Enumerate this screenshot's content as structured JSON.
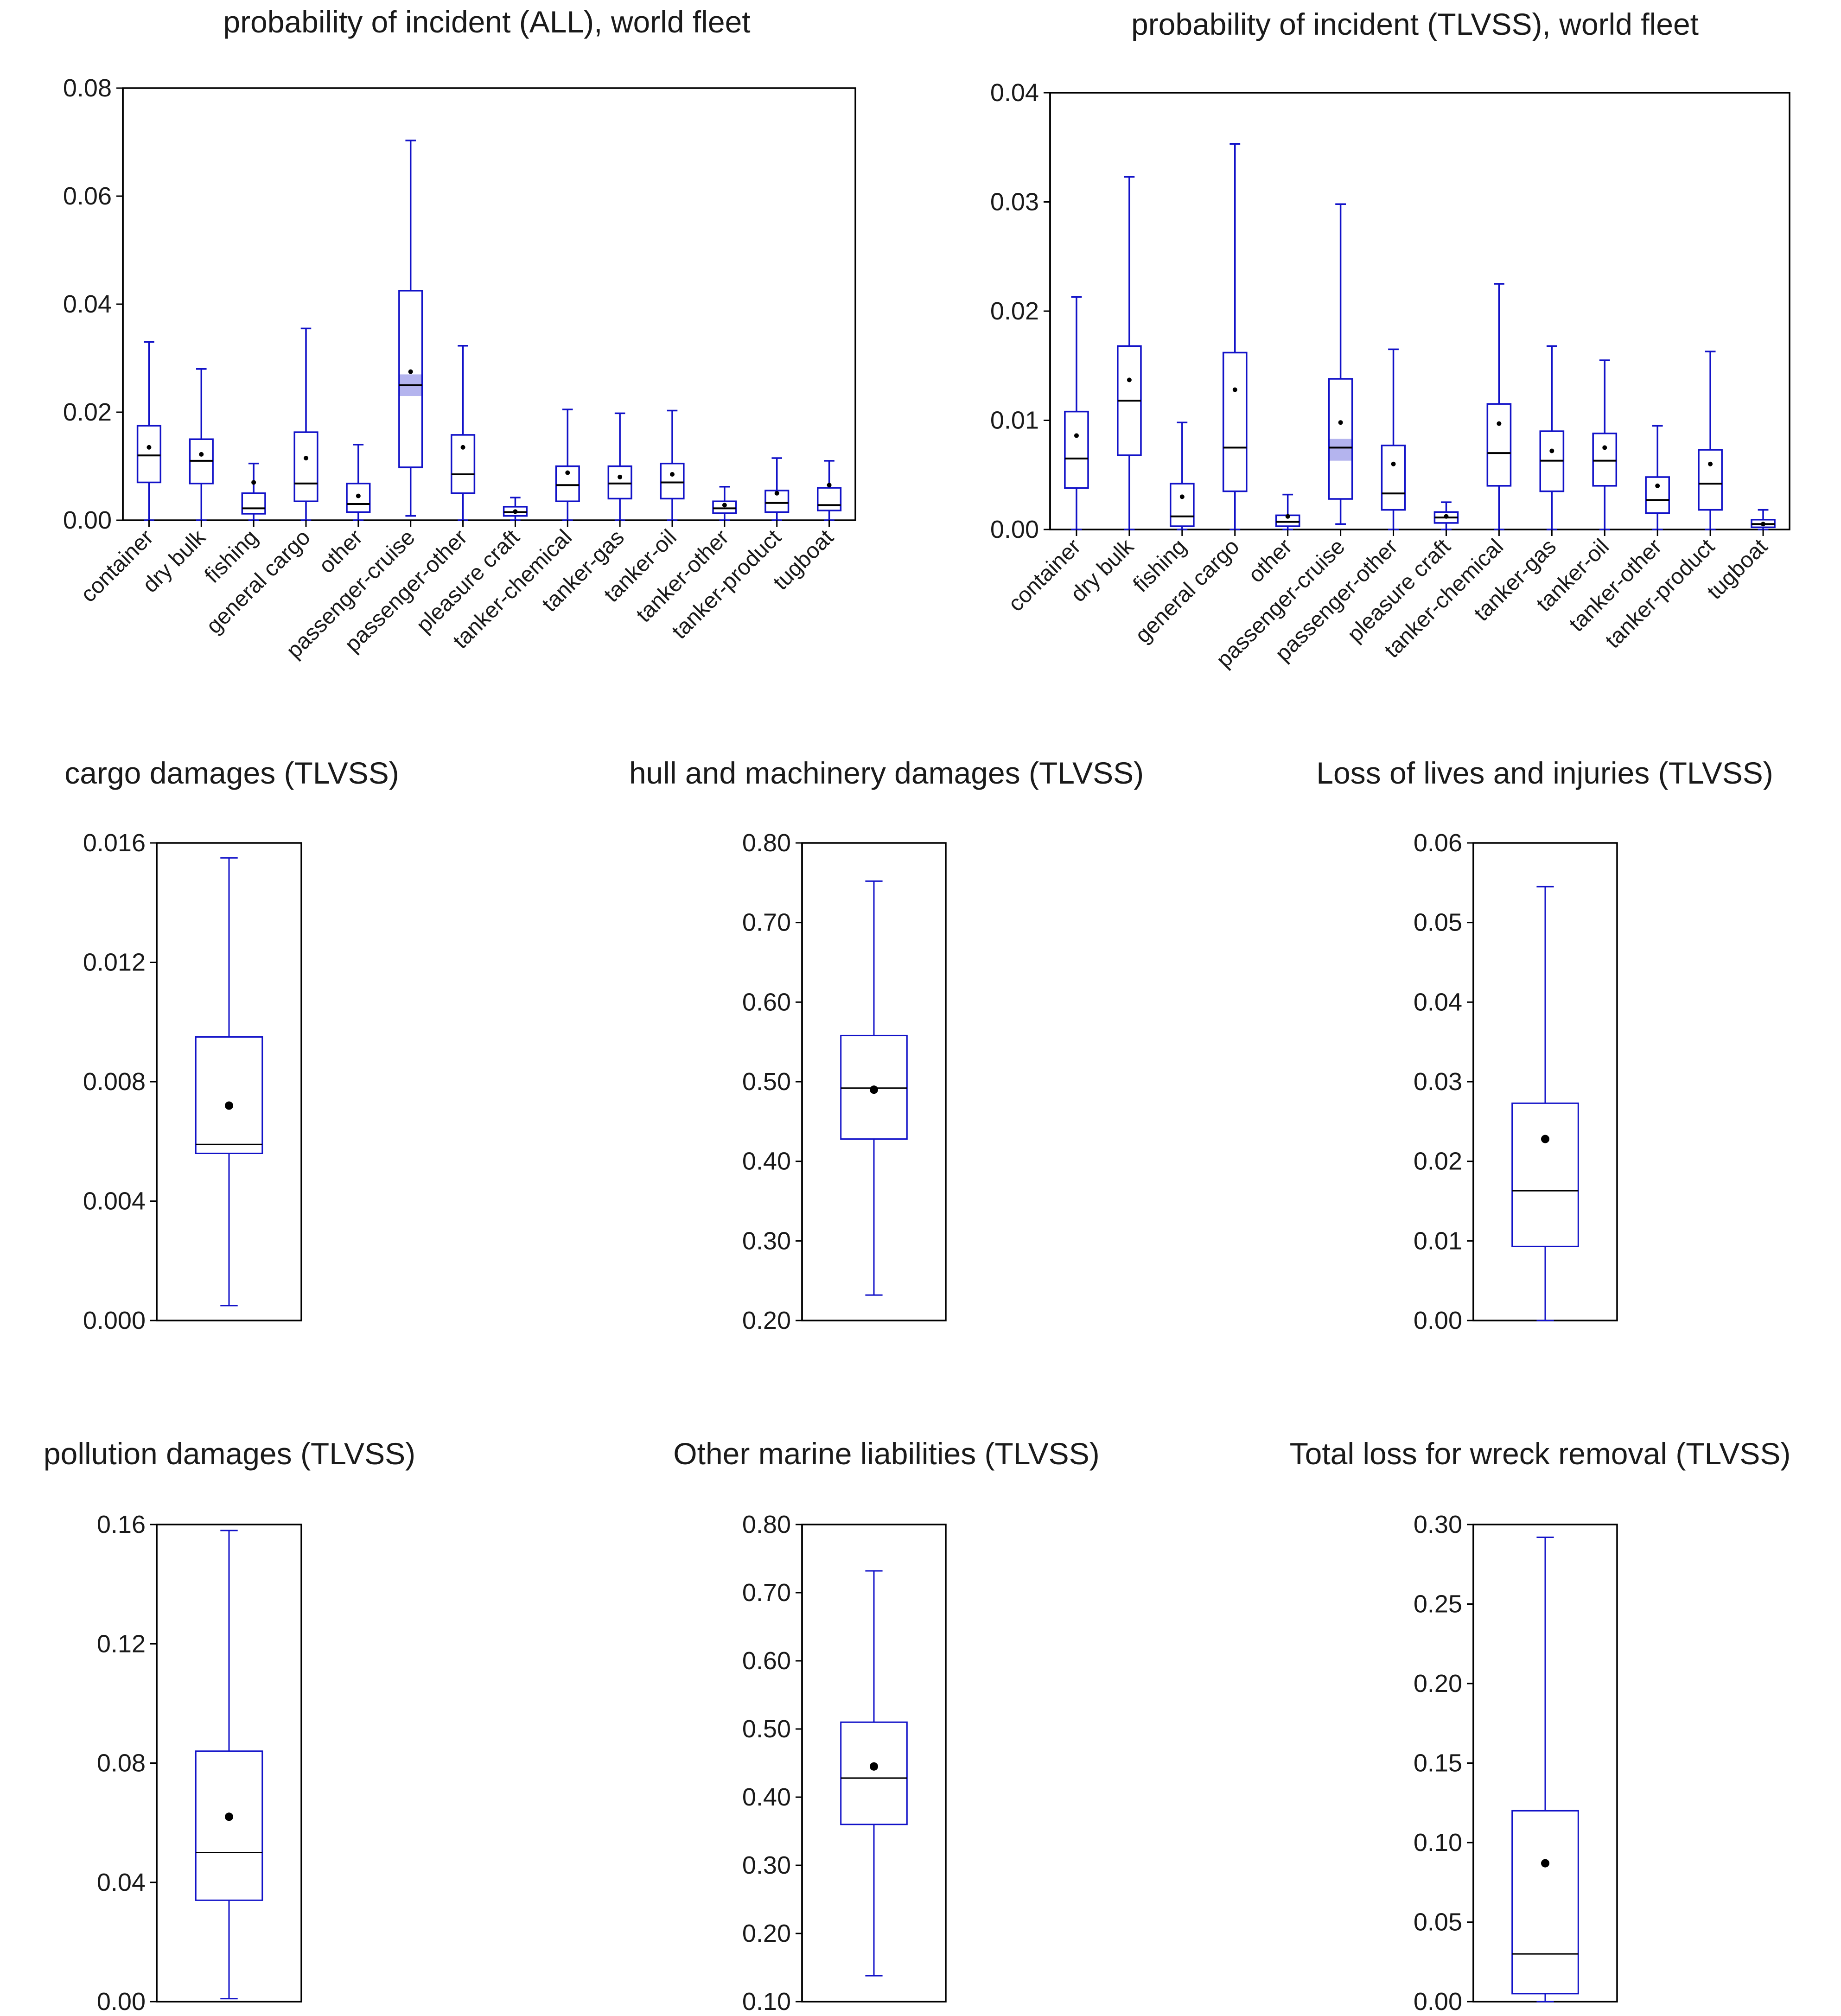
{
  "colors": {
    "box": "#1212c8",
    "median": "#000000",
    "mean": "#000000",
    "notch": "#b4b4ee",
    "axis": "#000000"
  },
  "chart_data": [
    {
      "type": "boxplot",
      "title": "probability of incident (ALL), world fleet",
      "ylim": [
        0,
        0.08
      ],
      "yticks": [
        "0.00",
        "0.02",
        "0.04",
        "0.06",
        "0.08"
      ],
      "categories": [
        "container",
        "dry bulk",
        "fishing",
        "general cargo",
        "other",
        "passenger-cruise",
        "passenger-other",
        "pleasure craft",
        "tanker-chemical",
        "tanker-gas",
        "tanker-oil",
        "tanker-other",
        "tanker-product",
        "tugboat"
      ],
      "series": [
        {
          "name": "container",
          "min": 0.0,
          "q1": 0.007,
          "median": 0.012,
          "q3": 0.0175,
          "max": 0.033,
          "mean": 0.0135
        },
        {
          "name": "dry bulk",
          "min": 0.0,
          "q1": 0.0068,
          "median": 0.011,
          "q3": 0.015,
          "max": 0.028,
          "mean": 0.0122
        },
        {
          "name": "fishing",
          "min": 0.0,
          "q1": 0.0012,
          "median": 0.0022,
          "q3": 0.005,
          "max": 0.0105,
          "mean": 0.007
        },
        {
          "name": "general cargo",
          "min": 0.0,
          "q1": 0.0035,
          "median": 0.0068,
          "q3": 0.0163,
          "max": 0.0355,
          "mean": 0.0115
        },
        {
          "name": "other",
          "min": 0.0,
          "q1": 0.0015,
          "median": 0.003,
          "q3": 0.0068,
          "max": 0.014,
          "mean": 0.0045
        },
        {
          "name": "passenger-cruise",
          "min": 0.0008,
          "q1": 0.0098,
          "median": 0.025,
          "q3": 0.0425,
          "max": 0.0703,
          "mean": 0.0275,
          "notch": [
            0.023,
            0.027
          ]
        },
        {
          "name": "passenger-other",
          "min": 0.0,
          "q1": 0.005,
          "median": 0.0085,
          "q3": 0.0158,
          "max": 0.0323,
          "mean": 0.0135
        },
        {
          "name": "pleasure craft",
          "min": 0.0,
          "q1": 0.0008,
          "median": 0.0015,
          "q3": 0.0025,
          "max": 0.0042,
          "mean": 0.0016
        },
        {
          "name": "tanker-chemical",
          "min": 0.0,
          "q1": 0.0035,
          "median": 0.0065,
          "q3": 0.01,
          "max": 0.0205,
          "mean": 0.0088
        },
        {
          "name": "tanker-gas",
          "min": 0.0,
          "q1": 0.004,
          "median": 0.0068,
          "q3": 0.01,
          "max": 0.0198,
          "mean": 0.008
        },
        {
          "name": "tanker-oil",
          "min": 0.0,
          "q1": 0.004,
          "median": 0.007,
          "q3": 0.0105,
          "max": 0.0203,
          "mean": 0.0085
        },
        {
          "name": "tanker-other",
          "min": 0.0,
          "q1": 0.0013,
          "median": 0.0022,
          "q3": 0.0035,
          "max": 0.0062,
          "mean": 0.0028
        },
        {
          "name": "tanker-product",
          "min": 0.0,
          "q1": 0.0015,
          "median": 0.0032,
          "q3": 0.0055,
          "max": 0.0115,
          "mean": 0.005
        },
        {
          "name": "tugboat",
          "min": 0.0,
          "q1": 0.0018,
          "median": 0.0028,
          "q3": 0.006,
          "max": 0.011,
          "mean": 0.0065
        }
      ]
    },
    {
      "type": "boxplot",
      "title": "probability of incident (TLVSS), world fleet",
      "ylim": [
        0,
        0.04
      ],
      "yticks": [
        "0.00",
        "0.01",
        "0.02",
        "0.03",
        "0.04"
      ],
      "categories": [
        "container",
        "dry bulk",
        "fishing",
        "general cargo",
        "other",
        "passenger-cruise",
        "passenger-other",
        "pleasure craft",
        "tanker-chemical",
        "tanker-gas",
        "tanker-oil",
        "tanker-other",
        "tanker-product",
        "tugboat"
      ],
      "series": [
        {
          "name": "container",
          "min": 0.0,
          "q1": 0.0038,
          "median": 0.0065,
          "q3": 0.0108,
          "max": 0.0213,
          "mean": 0.0086
        },
        {
          "name": "dry bulk",
          "min": 0.0,
          "q1": 0.0068,
          "median": 0.0118,
          "q3": 0.0168,
          "max": 0.0323,
          "mean": 0.0137
        },
        {
          "name": "fishing",
          "min": 0.0,
          "q1": 0.0003,
          "median": 0.0012,
          "q3": 0.0042,
          "max": 0.0098,
          "mean": 0.003
        },
        {
          "name": "general cargo",
          "min": 0.0,
          "q1": 0.0035,
          "median": 0.0075,
          "q3": 0.0162,
          "max": 0.0353,
          "mean": 0.0128
        },
        {
          "name": "other",
          "min": 0.0,
          "q1": 0.0003,
          "median": 0.0007,
          "q3": 0.0013,
          "max": 0.0032,
          "mean": 0.0012
        },
        {
          "name": "passenger-cruise",
          "min": 0.0005,
          "q1": 0.0028,
          "median": 0.0075,
          "q3": 0.0138,
          "max": 0.0298,
          "mean": 0.0098,
          "notch": [
            0.0063,
            0.0083
          ]
        },
        {
          "name": "passenger-other",
          "min": 0.0,
          "q1": 0.0018,
          "median": 0.0033,
          "q3": 0.0077,
          "max": 0.0165,
          "mean": 0.006
        },
        {
          "name": "pleasure craft",
          "min": 0.0,
          "q1": 0.0006,
          "median": 0.0011,
          "q3": 0.0016,
          "max": 0.0025,
          "mean": 0.0012
        },
        {
          "name": "tanker-chemical",
          "min": 0.0,
          "q1": 0.004,
          "median": 0.007,
          "q3": 0.0115,
          "max": 0.0225,
          "mean": 0.0097
        },
        {
          "name": "tanker-gas",
          "min": 0.0,
          "q1": 0.0035,
          "median": 0.0063,
          "q3": 0.009,
          "max": 0.0168,
          "mean": 0.0072
        },
        {
          "name": "tanker-oil",
          "min": 0.0,
          "q1": 0.004,
          "median": 0.0063,
          "q3": 0.0088,
          "max": 0.0155,
          "mean": 0.0075
        },
        {
          "name": "tanker-other",
          "min": 0.0,
          "q1": 0.0015,
          "median": 0.0027,
          "q3": 0.0048,
          "max": 0.0095,
          "mean": 0.004
        },
        {
          "name": "tanker-product",
          "min": 0.0,
          "q1": 0.0018,
          "median": 0.0042,
          "q3": 0.0073,
          "max": 0.0163,
          "mean": 0.006
        },
        {
          "name": "tugboat",
          "min": 0.0,
          "q1": 0.0002,
          "median": 0.0005,
          "q3": 0.0009,
          "max": 0.0018,
          "mean": 0.0005
        }
      ]
    },
    {
      "type": "boxplot",
      "title": "cargo damages (TLVSS)",
      "ylim": [
        0,
        0.016
      ],
      "yticks": [
        "0.000",
        "0.004",
        "0.008",
        "0.012",
        "0.016"
      ],
      "categories": [],
      "series": [
        {
          "name": "cargo damages",
          "min": 0.0005,
          "q1": 0.0056,
          "median": 0.0059,
          "q3": 0.0095,
          "max": 0.0155,
          "mean": 0.0072
        }
      ]
    },
    {
      "type": "boxplot",
      "title": "hull and machinery damages (TLVSS)",
      "ylim": [
        0.2,
        0.8
      ],
      "yticks": [
        "0.20",
        "0.30",
        "0.40",
        "0.50",
        "0.60",
        "0.70",
        "0.80"
      ],
      "categories": [],
      "series": [
        {
          "name": "hull and machinery damages",
          "min": 0.232,
          "q1": 0.428,
          "median": 0.492,
          "q3": 0.558,
          "max": 0.752,
          "mean": 0.49
        }
      ]
    },
    {
      "type": "boxplot",
      "title": "Loss of lives and injuries (TLVSS)",
      "ylim": [
        0,
        0.06
      ],
      "yticks": [
        "0.00",
        "0.01",
        "0.02",
        "0.03",
        "0.04",
        "0.05",
        "0.06"
      ],
      "categories": [],
      "series": [
        {
          "name": "Loss of lives and injuries",
          "min": 0.0,
          "q1": 0.0093,
          "median": 0.0163,
          "q3": 0.0273,
          "max": 0.0545,
          "mean": 0.0228
        }
      ]
    },
    {
      "type": "boxplot",
      "title": "pollution damages (TLVSS)",
      "ylim": [
        0,
        0.16
      ],
      "yticks": [
        "0.00",
        "0.04",
        "0.08",
        "0.12",
        "0.16"
      ],
      "categories": [],
      "series": [
        {
          "name": "pollution damages",
          "min": 0.001,
          "q1": 0.034,
          "median": 0.05,
          "q3": 0.084,
          "max": 0.158,
          "mean": 0.062
        }
      ]
    },
    {
      "type": "boxplot",
      "title": "Other marine liabilities (TLVSS)",
      "ylim": [
        0.1,
        0.8
      ],
      "yticks": [
        "0.10",
        "0.20",
        "0.30",
        "0.40",
        "0.50",
        "0.60",
        "0.70",
        "0.80"
      ],
      "categories": [],
      "series": [
        {
          "name": "Other marine liabilities",
          "min": 0.138,
          "q1": 0.36,
          "median": 0.428,
          "q3": 0.51,
          "max": 0.732,
          "mean": 0.445
        }
      ]
    },
    {
      "type": "boxplot",
      "title": "Total loss for wreck removal (TLVSS)",
      "ylim": [
        0,
        0.3
      ],
      "yticks": [
        "0.00",
        "0.05",
        "0.10",
        "0.15",
        "0.20",
        "0.25",
        "0.30"
      ],
      "categories": [],
      "series": [
        {
          "name": "Total loss for wreck removal",
          "min": 0.0,
          "q1": 0.005,
          "median": 0.03,
          "q3": 0.12,
          "max": 0.292,
          "mean": 0.087
        }
      ]
    }
  ]
}
